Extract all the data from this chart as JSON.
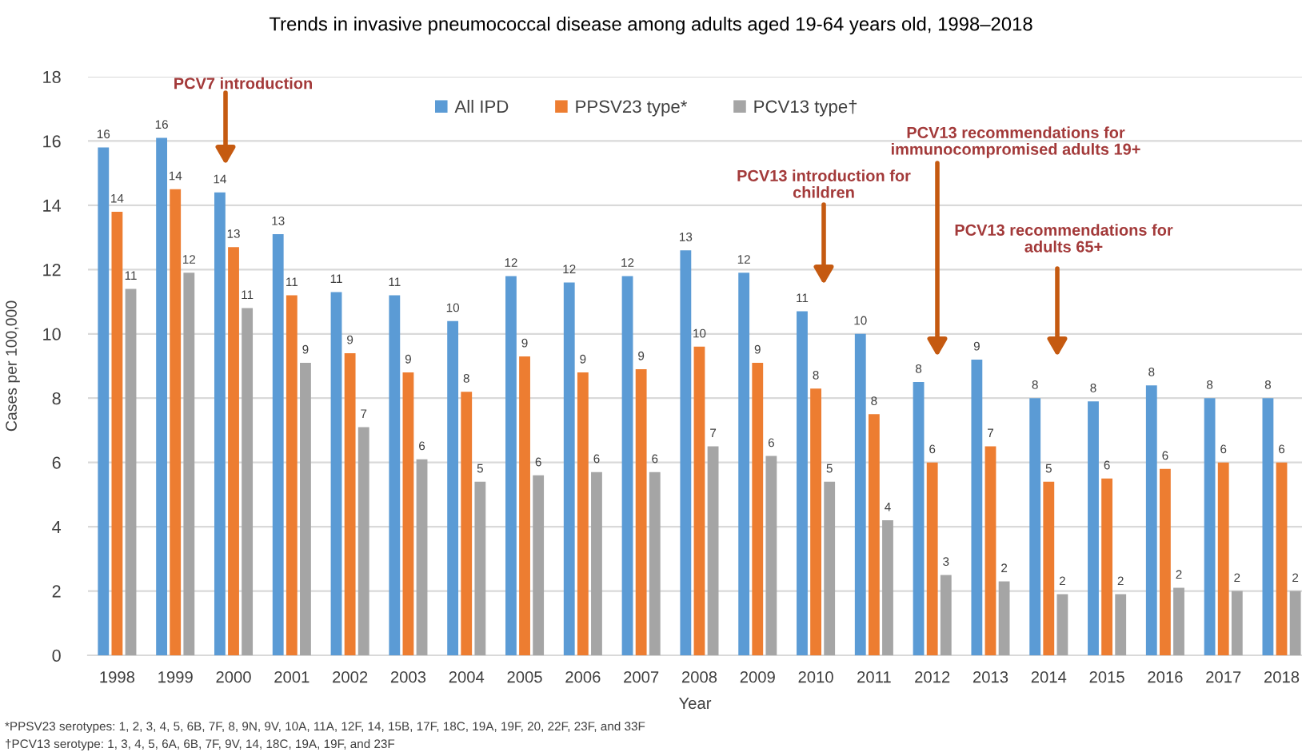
{
  "chart_data": {
    "type": "bar",
    "title": "Trends in invasive pneumococcal disease among adults aged 19-64 years old, 1998–2018",
    "xlabel": "Year",
    "ylabel": "Cases per 100,000",
    "categories": [
      "1998",
      "1999",
      "2000",
      "2001",
      "2002",
      "2003",
      "2004",
      "2005",
      "2006",
      "2007",
      "2008",
      "2009",
      "2010",
      "2011",
      "2012",
      "2013",
      "2014",
      "2015",
      "2016",
      "2017",
      "2018"
    ],
    "series": [
      {
        "name": "All IPD",
        "color": "#5b9bd5",
        "values": [
          15.8,
          16.1,
          14.4,
          13.1,
          11.3,
          11.2,
          10.4,
          11.8,
          11.6,
          11.8,
          12.6,
          11.9,
          10.7,
          10.0,
          8.5,
          9.2,
          8.0,
          7.9,
          8.4,
          8.0,
          8.0
        ],
        "value_labels": [
          "16",
          "16",
          "14",
          "13",
          "11",
          "11",
          "10",
          "12",
          "12",
          "12",
          "13",
          "12",
          "11",
          "10",
          "8",
          "9",
          "8",
          "8",
          "8",
          "8",
          "8"
        ]
      },
      {
        "name": "PPSV23 type*",
        "color": "#ed7d31",
        "values": [
          13.8,
          14.5,
          12.7,
          11.2,
          9.4,
          8.8,
          8.2,
          9.3,
          8.8,
          8.9,
          9.6,
          9.1,
          8.3,
          7.5,
          6.0,
          6.5,
          5.4,
          5.5,
          5.8,
          6.0,
          6.0
        ],
        "value_labels": [
          "14",
          "14",
          "13",
          "11",
          "9",
          "9",
          "8",
          "9",
          "9",
          "9",
          "10",
          "9",
          "8",
          "8",
          "6",
          "7",
          "5",
          "6",
          "6",
          "6",
          "6"
        ]
      },
      {
        "name": "PCV13 type†",
        "color": "#a5a5a5",
        "values": [
          11.4,
          11.9,
          10.8,
          9.1,
          7.1,
          6.1,
          5.4,
          5.6,
          5.7,
          5.7,
          6.5,
          6.2,
          5.4,
          4.2,
          2.5,
          2.3,
          1.9,
          1.9,
          2.1,
          2.0,
          2.0
        ],
        "value_labels": [
          "11",
          "12",
          "11",
          "9",
          "7",
          "6",
          "5",
          "6",
          "6",
          "6",
          "7",
          "6",
          "5",
          "4",
          "3",
          "2",
          "2",
          "2",
          "2",
          "2",
          "2"
        ]
      }
    ],
    "ylim": [
      0,
      18
    ],
    "yticks": [
      0,
      2,
      4,
      6,
      8,
      10,
      12,
      14,
      16,
      18
    ],
    "grid": "y",
    "legend": "top",
    "annotations": [
      "PCV7 introduction",
      "PCV13 introduction for\nchildren",
      "PCV13 recommendations for\nimmunocompromised adults 19+",
      "PCV13 recommendations for\nadults 65+",
      "*PPSV23 serotypes: 1, 2, 3, 4, 5, 6B, 7F, 8, 9N, 9V, 10A, 11A, 12F, 14, 15B, 17F, 18C, 19A, 19F, 20, 22F, 23F, and 33F",
      "†PCV13 serotype: 1, 3, 4, 5, 6A, 6B, 7F, 9V, 14, 18C, 19A, 19F, and 23F"
    ]
  }
}
